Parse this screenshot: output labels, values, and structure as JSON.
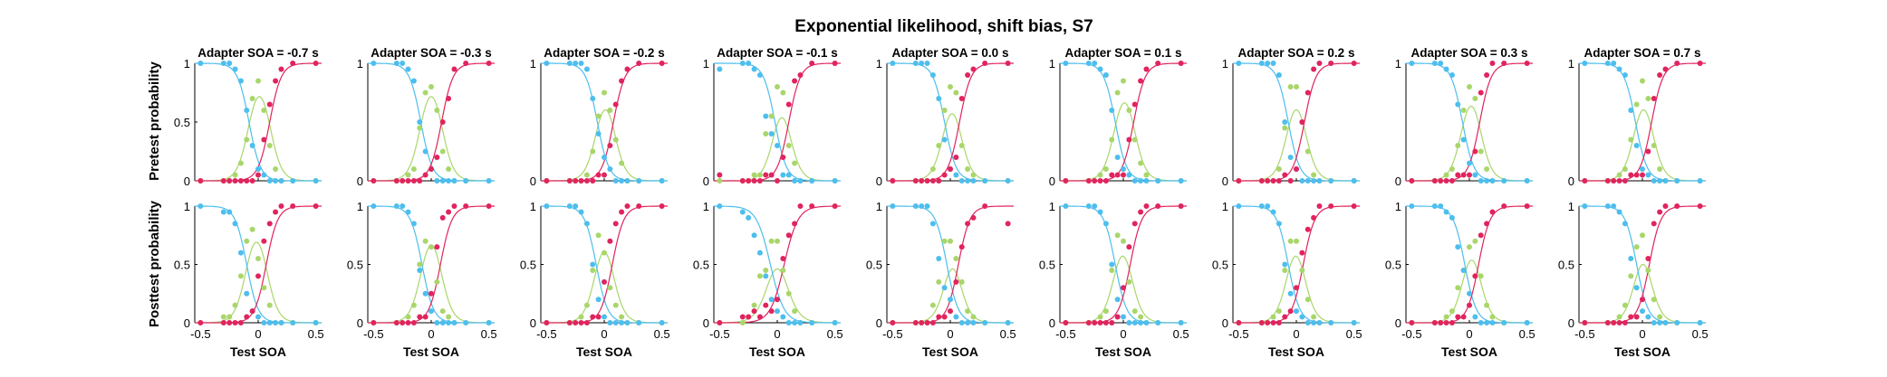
{
  "title": "Exponential likelihood, shift bias, S7",
  "row_labels": [
    "Pretest probability",
    "Posttest probability"
  ],
  "xlabel": "Test SOA",
  "colors": {
    "blue": "#4dbeee",
    "green": "#a9d66b",
    "red": "#e0245e",
    "axis": "#000000"
  },
  "chart_data": {
    "type": "scatter",
    "title": "Exponential likelihood, shift bias, S7",
    "xlabel": "Test SOA",
    "xlim": [
      -0.55,
      0.55
    ],
    "ylim": [
      0,
      1
    ],
    "xticks": [
      "-0.5",
      "0",
      "0.5"
    ],
    "yticks_full": [
      "0",
      "0.5",
      "1"
    ],
    "test_soa": [
      -0.5,
      -0.3,
      -0.25,
      -0.2,
      -0.15,
      -0.1,
      -0.05,
      0.0,
      0.05,
      0.1,
      0.15,
      0.2,
      0.3,
      0.5
    ],
    "panel_titles": [
      "Adapter SOA = -0.7 s",
      "Adapter SOA = -0.3 s",
      "Adapter SOA = -0.2 s",
      "Adapter SOA = -0.1 s",
      "Adapter SOA = 0.0 s",
      "Adapter SOA = 0.1 s",
      "Adapter SOA = 0.2 s",
      "Adapter SOA = 0.3 s",
      "Adapter SOA = 0.7 s"
    ],
    "series_names": [
      "blue",
      "green",
      "red"
    ],
    "fit_params": {
      "pretest": [
        {
          "mu_blue": -0.08,
          "mu_red": 0.1,
          "s": 0.05
        },
        {
          "mu_blue": -0.09,
          "mu_red": 0.09,
          "s": 0.05
        },
        {
          "mu_blue": -0.06,
          "mu_red": 0.08,
          "s": 0.05
        },
        {
          "mu_blue": -0.02,
          "mu_red": 0.1,
          "s": 0.05
        },
        {
          "mu_blue": -0.05,
          "mu_red": 0.08,
          "s": 0.05
        },
        {
          "mu_blue": -0.07,
          "mu_red": 0.09,
          "s": 0.05
        },
        {
          "mu_blue": -0.07,
          "mu_red": 0.07,
          "s": 0.05
        },
        {
          "mu_blue": -0.06,
          "mu_red": 0.09,
          "s": 0.05
        },
        {
          "mu_blue": -0.06,
          "mu_red": 0.08,
          "s": 0.05
        }
      ],
      "posttest": [
        {
          "mu_blue": -0.1,
          "mu_red": 0.07,
          "s": 0.05
        },
        {
          "mu_blue": -0.08,
          "mu_red": 0.08,
          "s": 0.05
        },
        {
          "mu_blue": -0.07,
          "mu_red": 0.07,
          "s": 0.05
        },
        {
          "mu_blue": -0.06,
          "mu_red": 0.06,
          "s": 0.06
        },
        {
          "mu_blue": -0.03,
          "mu_red": 0.07,
          "s": 0.05
        },
        {
          "mu_blue": -0.07,
          "mu_red": 0.06,
          "s": 0.05
        },
        {
          "mu_blue": -0.07,
          "mu_red": 0.06,
          "s": 0.05
        },
        {
          "mu_blue": -0.04,
          "mu_red": 0.08,
          "s": 0.05
        },
        {
          "mu_blue": -0.05,
          "mu_red": 0.06,
          "s": 0.05
        }
      ]
    },
    "points": {
      "pretest": [
        {
          "blue": [
            1,
            1,
            1,
            0.95,
            0.85,
            0.6,
            0.3,
            0.1,
            0.05,
            0,
            0,
            0,
            0,
            0
          ],
          "green": [
            0,
            0,
            0,
            0.05,
            0.15,
            0.35,
            0.7,
            0.85,
            0.6,
            0.3,
            0.1,
            0,
            0,
            0
          ],
          "red": [
            0,
            0,
            0,
            0,
            0,
            0,
            0,
            0.05,
            0.35,
            0.65,
            0.85,
            0.95,
            1,
            1
          ]
        },
        {
          "blue": [
            1,
            1,
            1,
            0.95,
            0.85,
            0.5,
            0.25,
            0.1,
            0,
            0,
            0,
            0,
            0,
            0
          ],
          "green": [
            0,
            0,
            0,
            0.05,
            0.1,
            0.45,
            0.75,
            0.8,
            0.6,
            0.25,
            0.1,
            0,
            0,
            0
          ],
          "red": [
            0,
            0,
            0,
            0,
            0,
            0,
            0.05,
            0.1,
            0.2,
            0.5,
            0.7,
            0.95,
            1,
            1
          ]
        },
        {
          "blue": [
            1,
            1,
            1,
            1,
            0.95,
            0.7,
            0.4,
            0.2,
            0.1,
            0,
            0,
            0,
            0,
            0
          ],
          "green": [
            0,
            0,
            0,
            0,
            0.05,
            0.25,
            0.55,
            0.75,
            0.6,
            0.35,
            0.15,
            0,
            0,
            0
          ],
          "red": [
            0,
            0,
            0,
            0,
            0,
            0,
            0.05,
            0.05,
            0.3,
            0.65,
            0.85,
            0.95,
            1,
            1
          ]
        },
        {
          "blue": [
            0.95,
            1,
            1,
            0.95,
            0.9,
            0.55,
            0.4,
            0.3,
            0.05,
            0.05,
            0,
            0,
            0,
            0
          ],
          "green": [
            0,
            0,
            0,
            0.05,
            0.05,
            0.4,
            0.55,
            0.8,
            0.75,
            0.3,
            0.15,
            0,
            0,
            0
          ],
          "red": [
            0.05,
            0,
            0,
            0,
            0,
            0.05,
            0.05,
            0,
            0.2,
            0.65,
            0.85,
            0.9,
            1,
            1
          ]
        },
        {
          "blue": [
            1,
            1,
            1,
            1,
            0.9,
            0.7,
            0.35,
            0.1,
            0.05,
            0,
            0,
            0,
            0,
            0
          ],
          "green": [
            0,
            0,
            0,
            0,
            0.1,
            0.3,
            0.6,
            0.8,
            0.75,
            0.3,
            0.1,
            0.05,
            0,
            0
          ],
          "red": [
            0,
            0,
            0,
            0,
            0,
            0,
            0.05,
            0.1,
            0.2,
            0.7,
            0.9,
            0.95,
            1,
            1
          ]
        },
        {
          "blue": [
            1,
            1,
            1,
            0.95,
            0.9,
            0.6,
            0.2,
            0.1,
            0.05,
            0,
            0,
            0,
            0,
            0
          ],
          "green": [
            0,
            0,
            0,
            0.05,
            0.1,
            0.35,
            0.75,
            0.85,
            0.6,
            0.35,
            0.15,
            0.05,
            0,
            0
          ],
          "red": [
            0,
            0,
            0,
            0,
            0,
            0.05,
            0.05,
            0.05,
            0.35,
            0.65,
            0.85,
            0.95,
            1,
            1
          ]
        },
        {
          "blue": [
            1,
            1,
            1,
            1,
            0.9,
            0.5,
            0.2,
            0.1,
            0,
            0,
            0,
            0,
            0,
            0
          ],
          "green": [
            0,
            0,
            0,
            0,
            0.1,
            0.45,
            0.8,
            0.8,
            0.5,
            0.25,
            0.05,
            0,
            0,
            0
          ],
          "red": [
            0,
            0,
            0,
            0,
            0,
            0.05,
            0,
            0.1,
            0.5,
            0.75,
            0.95,
            1,
            1,
            1
          ]
        },
        {
          "blue": [
            1,
            1,
            1,
            0.95,
            0.9,
            0.65,
            0.35,
            0.15,
            0.05,
            0,
            0,
            0,
            0,
            0
          ],
          "green": [
            0,
            0,
            0,
            0.05,
            0.1,
            0.3,
            0.6,
            0.8,
            0.7,
            0.25,
            0.1,
            0,
            0,
            0
          ],
          "red": [
            0,
            0,
            0,
            0,
            0,
            0.05,
            0.05,
            0.05,
            0.25,
            0.75,
            0.9,
            1,
            1,
            1
          ]
        },
        {
          "blue": [
            1,
            1,
            1,
            0.95,
            0.9,
            0.6,
            0.3,
            0.1,
            0.05,
            0,
            0,
            0,
            0,
            0
          ],
          "green": [
            0,
            0,
            0,
            0.05,
            0.1,
            0.35,
            0.65,
            0.85,
            0.7,
            0.3,
            0.1,
            0,
            0,
            0
          ],
          "red": [
            0,
            0,
            0,
            0,
            0,
            0.05,
            0.05,
            0.05,
            0.25,
            0.7,
            0.9,
            0.95,
            1,
            1
          ]
        }
      ],
      "posttest": [
        {
          "blue": [
            1,
            0.95,
            0.95,
            0.85,
            0.6,
            0.25,
            0.1,
            0.05,
            0,
            0,
            0,
            0,
            0,
            0
          ],
          "green": [
            0,
            0.05,
            0.05,
            0.15,
            0.4,
            0.7,
            0.8,
            0.55,
            0.3,
            0.15,
            0,
            0,
            0,
            0
          ],
          "red": [
            0,
            0,
            0,
            0,
            0,
            0.05,
            0.1,
            0.4,
            0.7,
            0.85,
            0.95,
            1,
            1,
            1
          ]
        },
        {
          "blue": [
            1,
            1,
            1,
            0.95,
            0.85,
            0.45,
            0.25,
            0.1,
            0,
            0,
            0,
            0,
            0,
            0
          ],
          "green": [
            0,
            0,
            0,
            0.05,
            0.15,
            0.5,
            0.7,
            0.65,
            0.35,
            0.1,
            0.05,
            0,
            0,
            0
          ],
          "red": [
            0,
            0,
            0,
            0,
            0,
            0.05,
            0.05,
            0.25,
            0.65,
            0.9,
            0.95,
            1,
            1,
            1
          ]
        },
        {
          "blue": [
            1,
            1,
            1,
            0.95,
            0.85,
            0.5,
            0.2,
            0.05,
            0,
            0,
            0,
            0,
            0,
            0
          ],
          "green": [
            0,
            0,
            0,
            0.05,
            0.15,
            0.45,
            0.75,
            0.6,
            0.3,
            0.15,
            0.05,
            0,
            0,
            0
          ],
          "red": [
            0,
            0,
            0,
            0,
            0,
            0.05,
            0.05,
            0.35,
            0.7,
            0.85,
            0.95,
            1,
            1,
            1
          ]
        },
        {
          "blue": [
            1,
            0.95,
            0.9,
            0.75,
            0.6,
            0.4,
            0.2,
            0.1,
            0.05,
            0,
            0,
            0,
            0,
            0
          ],
          "green": [
            0,
            0,
            0.05,
            0.15,
            0.4,
            0.45,
            0.7,
            0.7,
            0.45,
            0.25,
            0.1,
            0,
            0,
            0
          ],
          "red": [
            0,
            0.05,
            0.05,
            0.1,
            0.05,
            0.15,
            0.1,
            0.2,
            0.55,
            0.75,
            0.85,
            1,
            1,
            1
          ]
        },
        {
          "blue": [
            1,
            1,
            1,
            1,
            0.85,
            0.55,
            0.3,
            0.2,
            0.05,
            0,
            0,
            0,
            0,
            0
          ],
          "green": [
            0,
            0,
            0,
            0,
            0.15,
            0.35,
            0.7,
            0.7,
            0.55,
            0.35,
            0.1,
            0.05,
            0,
            0
          ],
          "red": [
            0,
            0,
            0,
            0,
            0,
            0.05,
            0.05,
            0.1,
            0.35,
            0.65,
            0.85,
            0.9,
            1,
            0.85
          ]
        },
        {
          "blue": [
            1,
            1,
            1,
            0.95,
            0.85,
            0.5,
            0.2,
            0.05,
            0,
            0,
            0,
            0,
            0,
            0
          ],
          "green": [
            0,
            0,
            0,
            0.05,
            0.1,
            0.45,
            0.75,
            0.7,
            0.35,
            0.1,
            0.05,
            0,
            0,
            0
          ],
          "red": [
            0,
            0,
            0,
            0,
            0,
            0,
            0.05,
            0.3,
            0.65,
            0.85,
            0.95,
            1,
            1,
            1
          ]
        },
        {
          "blue": [
            1,
            1,
            1,
            0.95,
            0.85,
            0.5,
            0.25,
            0.1,
            0.05,
            0,
            0,
            0,
            0,
            0
          ],
          "green": [
            0,
            0,
            0,
            0.05,
            0.1,
            0.45,
            0.7,
            0.7,
            0.45,
            0.2,
            0.05,
            0,
            0,
            0
          ],
          "red": [
            0,
            0,
            0,
            0,
            0,
            0.05,
            0.1,
            0.3,
            0.6,
            0.8,
            0.9,
            1,
            1,
            1
          ]
        },
        {
          "blue": [
            1,
            1,
            1,
            0.95,
            0.9,
            0.65,
            0.45,
            0.25,
            0.05,
            0,
            0,
            0,
            0,
            0
          ],
          "green": [
            0,
            0,
            0,
            0.05,
            0.1,
            0.3,
            0.45,
            0.65,
            0.7,
            0.4,
            0.15,
            0.05,
            0,
            0
          ],
          "red": [
            0,
            0,
            0,
            0,
            0,
            0.05,
            0.05,
            0.15,
            0.4,
            0.75,
            0.85,
            0.95,
            1,
            1
          ]
        },
        {
          "blue": [
            1,
            1,
            1,
            0.95,
            0.85,
            0.55,
            0.3,
            0.1,
            0.05,
            0,
            0,
            0,
            0,
            0
          ],
          "green": [
            0,
            0,
            0,
            0.05,
            0.15,
            0.4,
            0.65,
            0.75,
            0.45,
            0.2,
            0.05,
            0,
            0,
            0
          ],
          "red": [
            0,
            0,
            0,
            0,
            0,
            0.05,
            0.05,
            0.2,
            0.55,
            0.85,
            0.95,
            1,
            1,
            1
          ]
        }
      ]
    }
  }
}
